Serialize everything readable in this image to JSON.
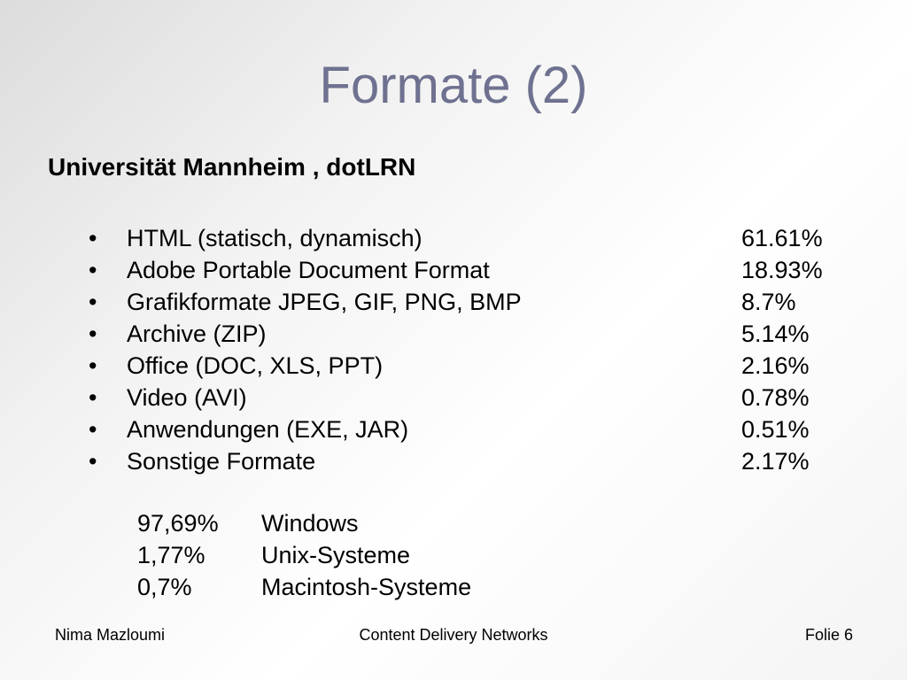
{
  "slide": {
    "title": "Formate (2)",
    "subtitle": "Universität Mannheim , dotLRN",
    "bullet_symbol": "•",
    "formats": [
      {
        "label": "HTML (statisch, dynamisch)",
        "percent": "61.61%"
      },
      {
        "label": "Adobe Portable Document Format",
        "percent": "18.93%"
      },
      {
        "label": "Grafikformate JPEG, GIF, PNG, BMP",
        "percent": "8.7%"
      },
      {
        "label": "Archive (ZIP)",
        "percent": "5.14%"
      },
      {
        "label": "Office (DOC, XLS, PPT)",
        "percent": "2.16%"
      },
      {
        "label": "Video (AVI)",
        "percent": "0.78%"
      },
      {
        "label": "Anwendungen (EXE, JAR)",
        "percent": "0.51%"
      },
      {
        "label": "Sonstige Formate",
        "percent": "2.17%"
      }
    ],
    "os": [
      {
        "percent": "97,69%",
        "name": "Windows"
      },
      {
        "percent": "1,77%",
        "name": "Unix-Systeme"
      },
      {
        "percent": "0,7%",
        "name": "Macintosh-Systeme"
      }
    ]
  },
  "footer": {
    "author": "Nima Mazloumi",
    "topic": "Content Delivery Networks",
    "page": "Folie 6"
  },
  "colors": {
    "title": "#6f7190",
    "text": "#000000"
  }
}
